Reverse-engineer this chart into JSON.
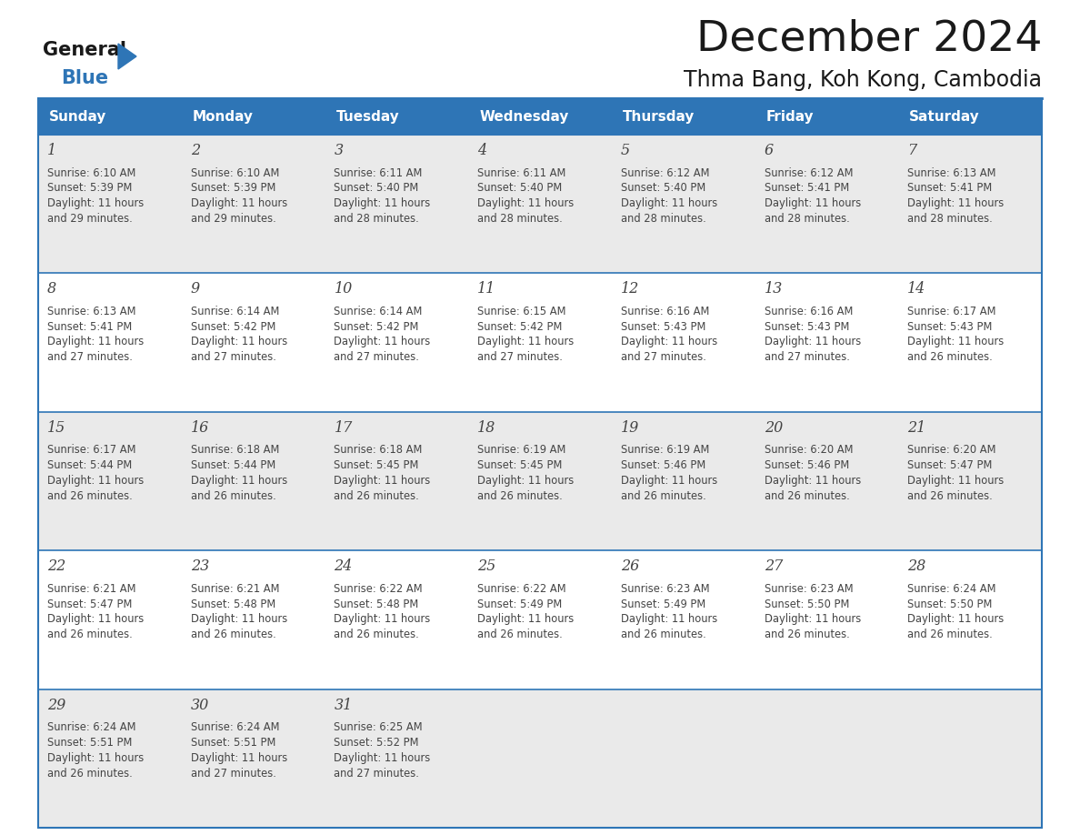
{
  "title": "December 2024",
  "subtitle": "Thma Bang, Koh Kong, Cambodia",
  "header_bg_color": "#2E75B6",
  "header_text_color": "#FFFFFF",
  "cell_bg_color_light": "#EAEAEA",
  "cell_bg_color_white": "#FFFFFF",
  "day_headers": [
    "Sunday",
    "Monday",
    "Tuesday",
    "Wednesday",
    "Thursday",
    "Friday",
    "Saturday"
  ],
  "title_color": "#1a1a1a",
  "subtitle_color": "#1a1a1a",
  "logo_general_color": "#1a1a1a",
  "logo_blue_color": "#2E75B6",
  "border_color": "#2E75B6",
  "text_color": "#444444",
  "days": [
    {
      "day": 1,
      "col": 0,
      "row": 0,
      "sunrise": "6:10 AM",
      "sunset": "5:39 PM",
      "daylight_h": "11 hours",
      "daylight_m": "29 minutes."
    },
    {
      "day": 2,
      "col": 1,
      "row": 0,
      "sunrise": "6:10 AM",
      "sunset": "5:39 PM",
      "daylight_h": "11 hours",
      "daylight_m": "29 minutes."
    },
    {
      "day": 3,
      "col": 2,
      "row": 0,
      "sunrise": "6:11 AM",
      "sunset": "5:40 PM",
      "daylight_h": "11 hours",
      "daylight_m": "28 minutes."
    },
    {
      "day": 4,
      "col": 3,
      "row": 0,
      "sunrise": "6:11 AM",
      "sunset": "5:40 PM",
      "daylight_h": "11 hours",
      "daylight_m": "28 minutes."
    },
    {
      "day": 5,
      "col": 4,
      "row": 0,
      "sunrise": "6:12 AM",
      "sunset": "5:40 PM",
      "daylight_h": "11 hours",
      "daylight_m": "28 minutes."
    },
    {
      "day": 6,
      "col": 5,
      "row": 0,
      "sunrise": "6:12 AM",
      "sunset": "5:41 PM",
      "daylight_h": "11 hours",
      "daylight_m": "28 minutes."
    },
    {
      "day": 7,
      "col": 6,
      "row": 0,
      "sunrise": "6:13 AM",
      "sunset": "5:41 PM",
      "daylight_h": "11 hours",
      "daylight_m": "28 minutes."
    },
    {
      "day": 8,
      "col": 0,
      "row": 1,
      "sunrise": "6:13 AM",
      "sunset": "5:41 PM",
      "daylight_h": "11 hours",
      "daylight_m": "27 minutes."
    },
    {
      "day": 9,
      "col": 1,
      "row": 1,
      "sunrise": "6:14 AM",
      "sunset": "5:42 PM",
      "daylight_h": "11 hours",
      "daylight_m": "27 minutes."
    },
    {
      "day": 10,
      "col": 2,
      "row": 1,
      "sunrise": "6:14 AM",
      "sunset": "5:42 PM",
      "daylight_h": "11 hours",
      "daylight_m": "27 minutes."
    },
    {
      "day": 11,
      "col": 3,
      "row": 1,
      "sunrise": "6:15 AM",
      "sunset": "5:42 PM",
      "daylight_h": "11 hours",
      "daylight_m": "27 minutes."
    },
    {
      "day": 12,
      "col": 4,
      "row": 1,
      "sunrise": "6:16 AM",
      "sunset": "5:43 PM",
      "daylight_h": "11 hours",
      "daylight_m": "27 minutes."
    },
    {
      "day": 13,
      "col": 5,
      "row": 1,
      "sunrise": "6:16 AM",
      "sunset": "5:43 PM",
      "daylight_h": "11 hours",
      "daylight_m": "27 minutes."
    },
    {
      "day": 14,
      "col": 6,
      "row": 1,
      "sunrise": "6:17 AM",
      "sunset": "5:43 PM",
      "daylight_h": "11 hours",
      "daylight_m": "26 minutes."
    },
    {
      "day": 15,
      "col": 0,
      "row": 2,
      "sunrise": "6:17 AM",
      "sunset": "5:44 PM",
      "daylight_h": "11 hours",
      "daylight_m": "26 minutes."
    },
    {
      "day": 16,
      "col": 1,
      "row": 2,
      "sunrise": "6:18 AM",
      "sunset": "5:44 PM",
      "daylight_h": "11 hours",
      "daylight_m": "26 minutes."
    },
    {
      "day": 17,
      "col": 2,
      "row": 2,
      "sunrise": "6:18 AM",
      "sunset": "5:45 PM",
      "daylight_h": "11 hours",
      "daylight_m": "26 minutes."
    },
    {
      "day": 18,
      "col": 3,
      "row": 2,
      "sunrise": "6:19 AM",
      "sunset": "5:45 PM",
      "daylight_h": "11 hours",
      "daylight_m": "26 minutes."
    },
    {
      "day": 19,
      "col": 4,
      "row": 2,
      "sunrise": "6:19 AM",
      "sunset": "5:46 PM",
      "daylight_h": "11 hours",
      "daylight_m": "26 minutes."
    },
    {
      "day": 20,
      "col": 5,
      "row": 2,
      "sunrise": "6:20 AM",
      "sunset": "5:46 PM",
      "daylight_h": "11 hours",
      "daylight_m": "26 minutes."
    },
    {
      "day": 21,
      "col": 6,
      "row": 2,
      "sunrise": "6:20 AM",
      "sunset": "5:47 PM",
      "daylight_h": "11 hours",
      "daylight_m": "26 minutes."
    },
    {
      "day": 22,
      "col": 0,
      "row": 3,
      "sunrise": "6:21 AM",
      "sunset": "5:47 PM",
      "daylight_h": "11 hours",
      "daylight_m": "26 minutes."
    },
    {
      "day": 23,
      "col": 1,
      "row": 3,
      "sunrise": "6:21 AM",
      "sunset": "5:48 PM",
      "daylight_h": "11 hours",
      "daylight_m": "26 minutes."
    },
    {
      "day": 24,
      "col": 2,
      "row": 3,
      "sunrise": "6:22 AM",
      "sunset": "5:48 PM",
      "daylight_h": "11 hours",
      "daylight_m": "26 minutes."
    },
    {
      "day": 25,
      "col": 3,
      "row": 3,
      "sunrise": "6:22 AM",
      "sunset": "5:49 PM",
      "daylight_h": "11 hours",
      "daylight_m": "26 minutes."
    },
    {
      "day": 26,
      "col": 4,
      "row": 3,
      "sunrise": "6:23 AM",
      "sunset": "5:49 PM",
      "daylight_h": "11 hours",
      "daylight_m": "26 minutes."
    },
    {
      "day": 27,
      "col": 5,
      "row": 3,
      "sunrise": "6:23 AM",
      "sunset": "5:50 PM",
      "daylight_h": "11 hours",
      "daylight_m": "26 minutes."
    },
    {
      "day": 28,
      "col": 6,
      "row": 3,
      "sunrise": "6:24 AM",
      "sunset": "5:50 PM",
      "daylight_h": "11 hours",
      "daylight_m": "26 minutes."
    },
    {
      "day": 29,
      "col": 0,
      "row": 4,
      "sunrise": "6:24 AM",
      "sunset": "5:51 PM",
      "daylight_h": "11 hours",
      "daylight_m": "26 minutes."
    },
    {
      "day": 30,
      "col": 1,
      "row": 4,
      "sunrise": "6:24 AM",
      "sunset": "5:51 PM",
      "daylight_h": "11 hours",
      "daylight_m": "27 minutes."
    },
    {
      "day": 31,
      "col": 2,
      "row": 4,
      "sunrise": "6:25 AM",
      "sunset": "5:52 PM",
      "daylight_h": "11 hours",
      "daylight_m": "27 minutes."
    }
  ]
}
